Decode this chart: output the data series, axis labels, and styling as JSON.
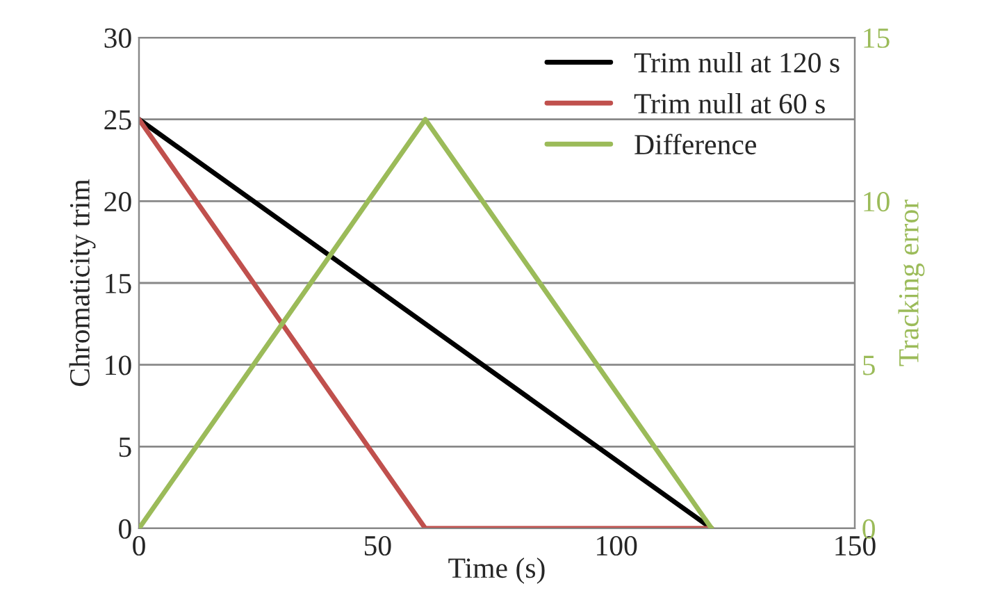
{
  "chart_data": {
    "type": "line",
    "xlabel": "Time (s)",
    "ylabel": "Chromaticity trim",
    "y2label": "Tracking error",
    "series": [
      {
        "name": "Trim null at 120 s",
        "color": "#000000",
        "x": [
          0,
          120
        ],
        "values": [
          25,
          0
        ]
      },
      {
        "name": "Trim null at 60 s",
        "color": "#c0504d",
        "x": [
          0,
          60,
          120
        ],
        "values": [
          25,
          0,
          0
        ]
      },
      {
        "name": "Difference",
        "color": "#9bbb59",
        "x": [
          0,
          60,
          120
        ],
        "values": [
          0,
          12.5,
          0
        ],
        "axis": "y2"
      }
    ],
    "xlim": [
      0,
      150
    ],
    "xticks": [
      0,
      50,
      100,
      150
    ],
    "ylim": [
      0,
      30
    ],
    "yticks": [
      0,
      5,
      10,
      15,
      20,
      25,
      30
    ],
    "y2lim": [
      0,
      15
    ],
    "y2ticks": [
      0,
      5,
      10,
      15
    ],
    "grid": "y",
    "legend": "top right",
    "marker": "none",
    "line_style": "solid"
  }
}
